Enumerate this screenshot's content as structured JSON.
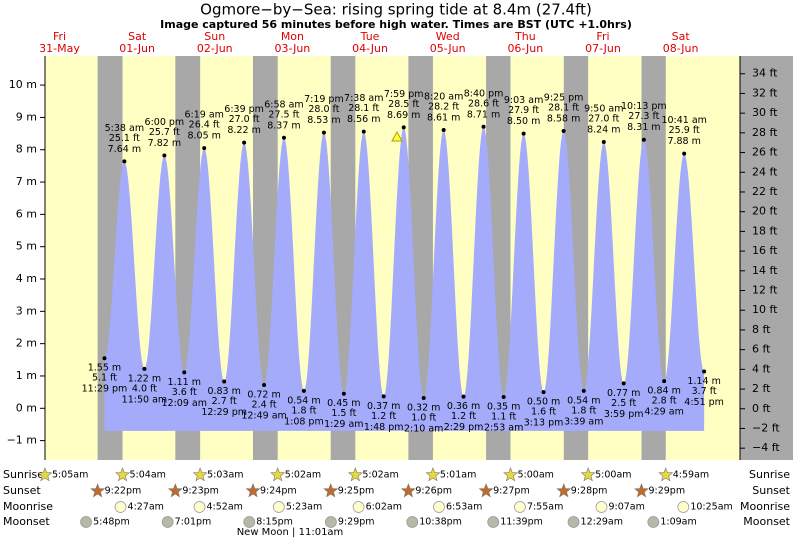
{
  "chart_data": {
    "type": "area",
    "title": "Ogmore−by−Sea: rising  spring tide at 8.4m (27.4ft)",
    "subtitle": "Image captured 56 minutes before high water. Times are BST (UTC +1.0hrs)",
    "color": "#a4abfb",
    "day_color": "#ffffc4",
    "night_color": "#a8a8a8",
    "days": [
      {
        "name": "Fri",
        "date": "31-May",
        "sunrise": "5:05am",
        "sunset": "9:22pm",
        "moonrise": null,
        "moonset": "5:48pm"
      },
      {
        "name": "Sat",
        "date": "01-Jun",
        "sunrise": "5:04am",
        "sunset": "9:23pm",
        "moonrise": "4:27am",
        "moonset": "7:01pm"
      },
      {
        "name": "Sun",
        "date": "02-Jun",
        "sunrise": "5:03am",
        "sunset": "9:24pm",
        "moonrise": "4:52am",
        "moonset": "8:15pm"
      },
      {
        "name": "Mon",
        "date": "03-Jun",
        "sunrise": "5:02am",
        "sunset": "9:25pm",
        "moonrise": "5:23am",
        "moonset": "9:29pm"
      },
      {
        "name": "Tue",
        "date": "04-Jun",
        "sunrise": "5:02am",
        "sunset": "9:26pm",
        "moonrise": "6:02am",
        "moonset": "10:38pm"
      },
      {
        "name": "Wed",
        "date": "05-Jun",
        "sunrise": "5:01am",
        "sunset": "9:27pm",
        "moonrise": "6:53am",
        "moonset": "11:39pm"
      },
      {
        "name": "Thu",
        "date": "06-Jun",
        "sunrise": "5:00am",
        "sunset": "9:28pm",
        "moonrise": "7:55am",
        "moonset": null
      },
      {
        "name": "Fri",
        "date": "07-Jun",
        "sunrise": "5:00am",
        "sunset": "9:29pm",
        "moonrise": "9:07am",
        "moonset": "12:29am"
      },
      {
        "name": "Sat",
        "date": "08-Jun",
        "sunrise": "4:59am",
        "sunset": null,
        "moonrise": "10:25am",
        "moonset": "1:09am"
      }
    ],
    "row_labels": {
      "sunrise": "Sunrise",
      "sunset": "Sunset",
      "moonrise": "Moonrise",
      "moonset": "Moonset"
    },
    "annotation": "New Moon | 11:01am",
    "tides": {
      "times": [
        "11:29 pm",
        "5:38 am",
        "11:50 am",
        "6:00 pm",
        "12:09 am",
        "6:19 am",
        "12:29 pm",
        "6:39 pm",
        "12:49 am",
        "6:58 am",
        "1:08 pm",
        "7:19 pm",
        "1:29 am",
        "7:38 am",
        "1:48 pm",
        "7:59 pm",
        "2:10 am",
        "8:20 am",
        "2:29 pm",
        "8:40 pm",
        "2:53 am",
        "9:03 am",
        "3:13 pm",
        "9:25 pm",
        "3:39 am",
        "9:50 am",
        "3:59 pm",
        "10:13 pm",
        "4:29 am",
        "10:41 am",
        "4:51 pm"
      ],
      "values": [
        1.55,
        7.64,
        1.22,
        7.82,
        1.11,
        8.05,
        0.83,
        8.22,
        0.72,
        8.37,
        0.54,
        8.53,
        0.45,
        8.56,
        0.37,
        8.69,
        0.32,
        8.61,
        0.36,
        8.71,
        0.35,
        8.5,
        0.5,
        8.58,
        0.54,
        8.24,
        0.77,
        8.31,
        0.84,
        7.88,
        1.14
      ],
      "value_labels": [
        "1.55 m",
        "7.64 m",
        "1.22 m",
        "7.82 m",
        "1.11 m",
        "8.05 m",
        "0.83 m",
        "8.22 m",
        "0.72 m",
        "8.37 m",
        "0.54 m",
        "8.53 m",
        "0.45 m",
        "8.56 m",
        "0.37 m",
        "8.69 m",
        "0.32 m",
        "8.61 m",
        "0.36 m",
        "8.71 m",
        "0.35 m",
        "8.50 m",
        "0.50 m",
        "8.58 m",
        "0.54 m",
        "8.24 m",
        "0.77 m",
        "8.31 m",
        "0.84 m",
        "7.88 m",
        "1.14 m"
      ],
      "ft_labels": [
        "5.1 ft",
        "25.1 ft",
        "4.0 ft",
        "25.7 ft",
        "3.6 ft",
        "26.4 ft",
        "2.7 ft",
        "27.0 ft",
        "2.4 ft",
        "27.5 ft",
        "1.8 ft",
        "28.0 ft",
        "1.5 ft",
        "28.1 ft",
        "1.2 ft",
        "28.5 ft",
        "1.0 ft",
        "28.2 ft",
        "1.2 ft",
        "28.6 ft",
        "1.1 ft",
        "27.9 ft",
        "1.6 ft",
        "28.1 ft",
        "1.8 ft",
        "27.0 ft",
        "2.5 ft",
        "27.3 ft",
        "2.8 ft",
        "25.9 ft",
        "3.7 ft"
      ]
    },
    "ylim": [
      -1.6,
      10.9
    ],
    "yticks": [
      {
        "value": -1,
        "label": "−1 m"
      },
      {
        "value": 0,
        "label": "0 m"
      },
      {
        "value": 1,
        "label": "1 m"
      },
      {
        "value": 2,
        "label": "2 m"
      },
      {
        "value": 3,
        "label": "3 m"
      },
      {
        "value": 4,
        "label": "4 m"
      },
      {
        "value": 5,
        "label": "5 m"
      },
      {
        "value": 6,
        "label": "6 m"
      },
      {
        "value": 7,
        "label": "7 m"
      },
      {
        "value": 8,
        "label": "8 m"
      },
      {
        "value": 9,
        "label": "9 m"
      },
      {
        "value": 10,
        "label": "10 m"
      }
    ],
    "y2lim": [
      -5.2,
      35.8
    ],
    "y2ticks": [
      {
        "value": -4,
        "label": "−4 ft"
      },
      {
        "value": -2,
        "label": "−2 ft"
      },
      {
        "value": 0,
        "label": "0 ft"
      },
      {
        "value": 2,
        "label": "2 ft"
      },
      {
        "value": 4,
        "label": "4 ft"
      },
      {
        "value": 6,
        "label": "6 ft"
      },
      {
        "value": 8,
        "label": "8 ft"
      },
      {
        "value": 10,
        "label": "10 ft"
      },
      {
        "value": 12,
        "label": "12 ft"
      },
      {
        "value": 14,
        "label": "14 ft"
      },
      {
        "value": 16,
        "label": "16 ft"
      },
      {
        "value": 18,
        "label": "18 ft"
      },
      {
        "value": 20,
        "label": "20 ft"
      },
      {
        "value": 22,
        "label": "22 ft"
      },
      {
        "value": 24,
        "label": "24 ft"
      },
      {
        "value": 26,
        "label": "26 ft"
      },
      {
        "value": 28,
        "label": "28 ft"
      },
      {
        "value": 30,
        "label": "30 ft"
      },
      {
        "value": 32,
        "label": "32 ft"
      },
      {
        "value": 34,
        "label": "34 ft"
      }
    ]
  }
}
